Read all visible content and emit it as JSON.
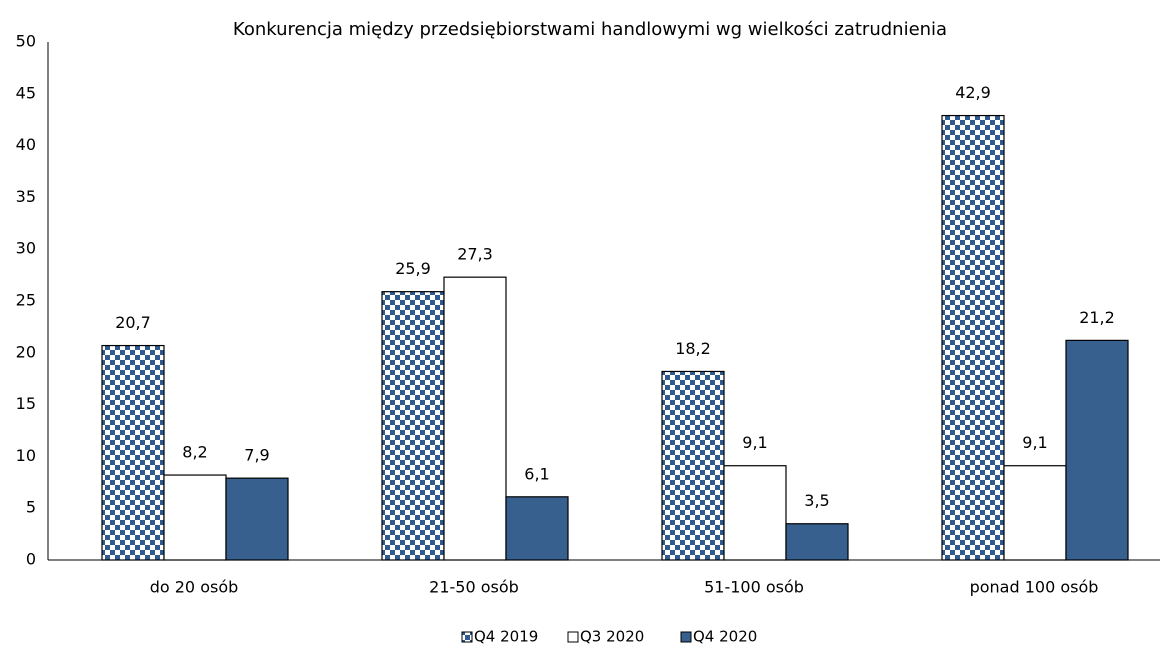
{
  "chart_data": {
    "type": "bar",
    "title": "Konkurencja między przedsiębiorstwami handlowymi wg wielkości zatrudnienia",
    "categories": [
      "do 20 osób",
      "21-50 osób",
      "51-100 osób",
      "ponad 100 osób"
    ],
    "series": [
      {
        "name": "Q4 2019",
        "color": "#2f5a8f",
        "fill_pattern": "checkerboard",
        "values": [
          20.7,
          25.9,
          18.2,
          42.9
        ],
        "value_labels": [
          "20,7",
          "25,9",
          "18,2",
          "42,9"
        ]
      },
      {
        "name": "Q3 2020",
        "color": "#ffffff",
        "values": [
          8.2,
          27.3,
          9.1,
          9.1
        ],
        "value_labels": [
          "8,2",
          "27,3",
          "9,1",
          "9,1"
        ]
      },
      {
        "name": "Q4 2020",
        "color": "#38608f",
        "values": [
          7.9,
          6.1,
          3.5,
          21.2
        ],
        "value_labels": [
          "7,9",
          "6,1",
          "3,5",
          "21,2"
        ]
      }
    ],
    "ylim": [
      0,
      50
    ],
    "yticks": [
      0,
      5,
      10,
      15,
      20,
      25,
      30,
      35,
      40,
      45,
      50
    ],
    "grid": false,
    "legend": "bottom"
  }
}
